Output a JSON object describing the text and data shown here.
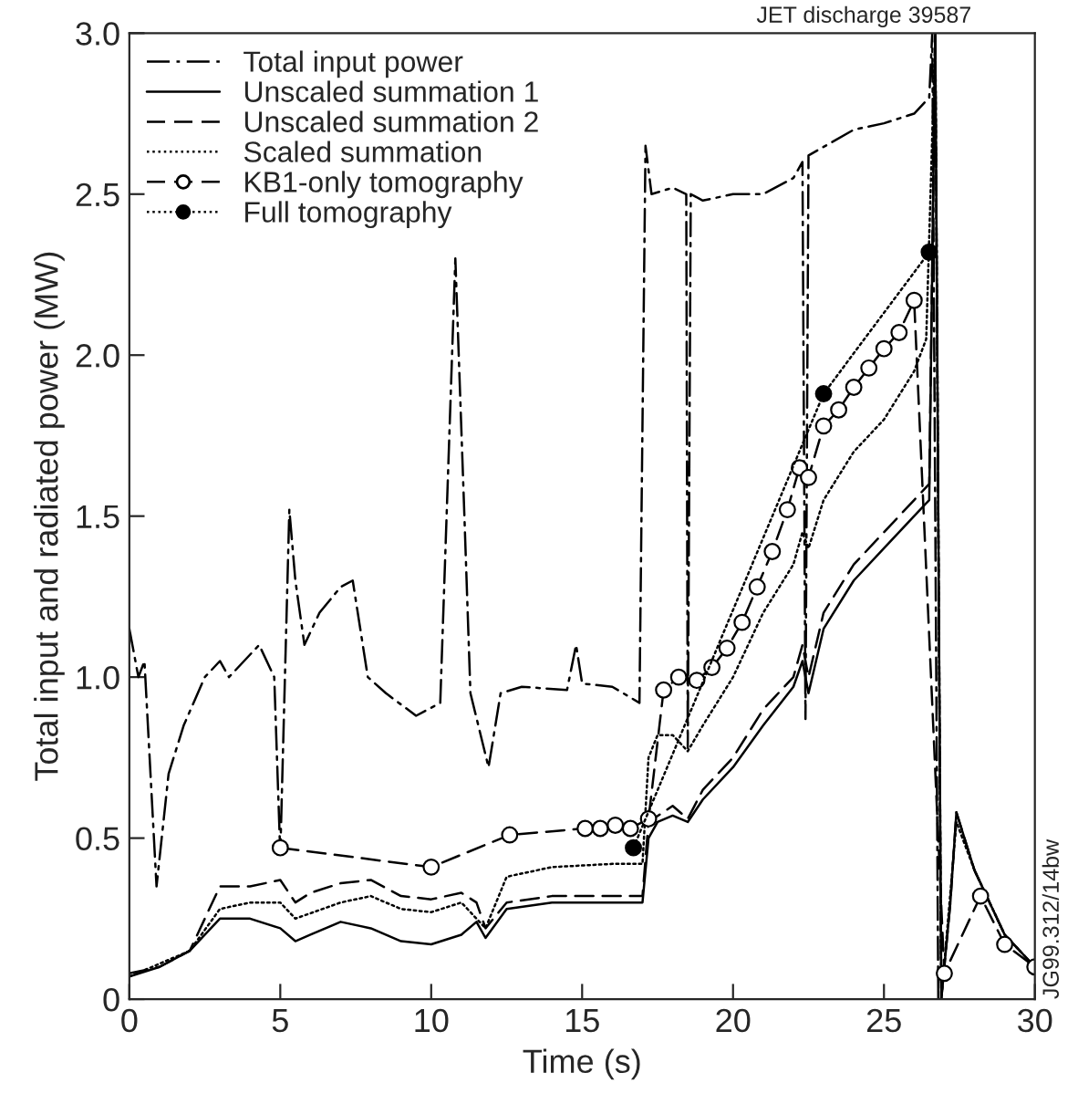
{
  "chart_data": {
    "type": "line",
    "xlabel": "Time (s)",
    "ylabel": "Total input and radiated power (MW)",
    "annotations": [
      "JET discharge 39587",
      "JG99.312/14bw"
    ],
    "xlim": [
      0,
      30
    ],
    "ylim": [
      0,
      3.0
    ],
    "xticks": [
      0,
      5,
      10,
      15,
      20,
      25,
      30
    ],
    "yticks": [
      0,
      0.5,
      {
        "value": 1.0,
        "label": "1.0"
      },
      1.5,
      {
        "value": 2.0,
        "label": "2.0"
      },
      2.5,
      {
        "value": 3.0,
        "label": "3.0"
      }
    ],
    "grid": false,
    "legend": "top left",
    "series": [
      {
        "name": "Total input power",
        "color": "#000000",
        "line_style": "dashdot",
        "marker": "none",
        "x": [
          0,
          0.3,
          0.5,
          0.9,
          1.3,
          1.8,
          2.5,
          3,
          3.3,
          4.3,
          4.8,
          5.0,
          5.3,
          5.5,
          5.8,
          6.3,
          7,
          7.4,
          7.9,
          8.5,
          9.5,
          10.3,
          10.8,
          11.1,
          11.3,
          11.9,
          12.3,
          13,
          14.5,
          14.8,
          15,
          16,
          16.9,
          17.1,
          17.3,
          18,
          18.45,
          18.5,
          18.6,
          19,
          20,
          21,
          22,
          22.3,
          22.4,
          22.5,
          24,
          25,
          26,
          26.5,
          26.6,
          26.8
        ],
        "values": [
          1.15,
          1.0,
          1.05,
          0.35,
          0.7,
          0.85,
          1.0,
          1.05,
          1.0,
          1.1,
          1.0,
          0.45,
          1.52,
          1.3,
          1.1,
          1.2,
          1.28,
          1.3,
          1.0,
          0.95,
          0.88,
          0.92,
          2.3,
          1.5,
          0.95,
          0.72,
          0.95,
          0.97,
          0.96,
          1.1,
          0.98,
          0.97,
          0.92,
          2.65,
          2.5,
          2.52,
          2.5,
          0.78,
          2.5,
          2.48,
          2.5,
          2.5,
          2.55,
          2.6,
          0.87,
          2.62,
          2.7,
          2.72,
          2.75,
          2.8,
          3.0,
          0
        ]
      },
      {
        "name": "Unscaled summation 1",
        "color": "#000000",
        "line_style": "solid",
        "marker": "none",
        "x": [
          0,
          1,
          2,
          3,
          4,
          5,
          5.5,
          6,
          7,
          8,
          9,
          10,
          11,
          11.5,
          11.8,
          12.5,
          14,
          16,
          17,
          17.2,
          17.5,
          18,
          18.5,
          19,
          20,
          21,
          22,
          22.3,
          22.5,
          23,
          24,
          25,
          26,
          26.5,
          26.7,
          26.9,
          27.2,
          27.4,
          28,
          29,
          30
        ],
        "values": [
          0.07,
          0.1,
          0.15,
          0.25,
          0.25,
          0.22,
          0.18,
          0.2,
          0.24,
          0.22,
          0.18,
          0.17,
          0.2,
          0.24,
          0.19,
          0.28,
          0.3,
          0.3,
          0.3,
          0.5,
          0.55,
          0.57,
          0.55,
          0.62,
          0.72,
          0.85,
          0.97,
          1.05,
          0.95,
          1.15,
          1.3,
          1.4,
          1.5,
          1.55,
          3.0,
          0,
          0.3,
          0.58,
          0.4,
          0.2,
          0.1
        ]
      },
      {
        "name": "Unscaled summation 2",
        "color": "#000000",
        "line_style": "dashed",
        "marker": "none",
        "x": [
          0,
          1,
          2,
          3,
          4,
          5,
          5.5,
          6,
          7,
          8,
          9,
          10,
          11,
          11.5,
          11.8,
          12.5,
          14,
          16,
          17,
          17.2,
          18,
          18.5,
          19,
          20,
          21,
          22,
          22.3,
          22.5,
          23,
          24,
          25,
          26,
          26.5,
          26.7,
          26.9,
          27.2,
          27.4,
          28,
          29,
          30
        ],
        "values": [
          0.08,
          0.1,
          0.15,
          0.35,
          0.35,
          0.37,
          0.3,
          0.33,
          0.36,
          0.37,
          0.32,
          0.31,
          0.33,
          0.3,
          0.22,
          0.3,
          0.32,
          0.32,
          0.32,
          0.55,
          0.6,
          0.56,
          0.65,
          0.75,
          0.9,
          1.0,
          1.1,
          1.0,
          1.2,
          1.35,
          1.45,
          1.55,
          1.6,
          3.0,
          0,
          0.3,
          0.58,
          0.4,
          0.2,
          0.1
        ]
      },
      {
        "name": "Scaled summation",
        "color": "#000000",
        "line_style": "dotted",
        "marker": "none",
        "x": [
          0,
          2,
          3,
          4,
          5,
          5.5,
          7,
          8,
          9,
          10,
          11,
          11.8,
          12.5,
          14,
          16,
          17,
          17.2,
          17.5,
          18,
          18.5,
          19,
          20,
          21,
          22,
          22.3,
          22.5,
          23,
          24,
          25,
          26,
          26.4,
          26.7,
          26.9,
          27.4,
          28,
          29,
          30
        ],
        "values": [
          0.07,
          0.15,
          0.28,
          0.3,
          0.3,
          0.25,
          0.3,
          0.32,
          0.28,
          0.27,
          0.3,
          0.22,
          0.38,
          0.41,
          0.42,
          0.42,
          0.75,
          0.82,
          0.82,
          0.77,
          0.85,
          1.0,
          1.2,
          1.35,
          1.45,
          1.4,
          1.55,
          1.7,
          1.8,
          1.95,
          2.05,
          3.0,
          0,
          0.55,
          0.4,
          0.2,
          0.1
        ]
      },
      {
        "name": "KB1-only tomography",
        "color": "#000000",
        "line_style": "dashed",
        "marker": "circle",
        "x": [
          5.0,
          10.0,
          12.6,
          15.1,
          15.6,
          16.1,
          16.6,
          17.2,
          17.7,
          18.2,
          18.8,
          19.3,
          19.8,
          20.3,
          20.8,
          21.3,
          21.8,
          22.2,
          22.5,
          23.0,
          23.5,
          24.0,
          24.5,
          25.0,
          25.5,
          26.0,
          27.0,
          28.2,
          29.0,
          30.0
        ],
        "values": [
          0.47,
          0.41,
          0.51,
          0.53,
          0.53,
          0.54,
          0.53,
          0.56,
          0.96,
          1.0,
          0.99,
          1.03,
          1.09,
          1.17,
          1.28,
          1.39,
          1.52,
          1.65,
          1.62,
          1.78,
          1.83,
          1.9,
          1.96,
          2.02,
          2.07,
          2.17,
          0.08,
          0.32,
          0.17,
          0.1
        ]
      },
      {
        "name": "Full tomography",
        "color": "#000000",
        "line_style": "dotted",
        "marker": "circle",
        "x": [
          16.7,
          23.0,
          26.5
        ],
        "values": [
          0.47,
          1.88,
          2.32
        ]
      }
    ]
  }
}
